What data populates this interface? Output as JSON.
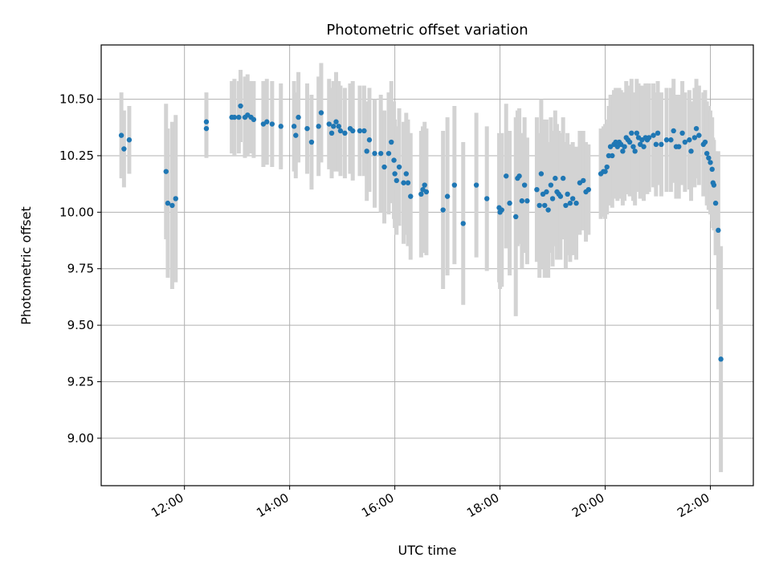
{
  "chart_data": {
    "type": "scatter",
    "title": "Photometric offset variation",
    "xlabel": "UTC time",
    "ylabel": "Photometric offset",
    "x_ticks": [
      "12:00",
      "14:00",
      "16:00",
      "18:00",
      "20:00",
      "22:00"
    ],
    "y_ticks": [
      "9.00",
      "9.25",
      "9.50",
      "9.75",
      "10.00",
      "10.25",
      "10.50"
    ],
    "xlim": [
      "10:25",
      "22:49"
    ],
    "ylim": [
      8.79,
      10.74
    ],
    "grid": true,
    "colors": {
      "point": "#1f77b4",
      "errorbar": "#d3d3d3",
      "grid": "#b0b0b0"
    },
    "points": [
      {
        "t": "10:48",
        "y": 10.34,
        "err": 0.19
      },
      {
        "t": "10:51",
        "y": 10.28,
        "err": 0.17
      },
      {
        "t": "10:57",
        "y": 10.32,
        "err": 0.15
      },
      {
        "t": "11:39",
        "y": 10.18,
        "err": 0.3
      },
      {
        "t": "11:41",
        "y": 10.04,
        "err": 0.33
      },
      {
        "t": "11:46",
        "y": 10.03,
        "err": 0.37
      },
      {
        "t": "11:50",
        "y": 10.06,
        "err": 0.37
      },
      {
        "t": "12:25",
        "y": 10.4,
        "err": 0.13
      },
      {
        "t": "12:25",
        "y": 10.37,
        "err": 0.13
      },
      {
        "t": "12:54",
        "y": 10.42,
        "err": 0.16
      },
      {
        "t": "12:57",
        "y": 10.42,
        "err": 0.17
      },
      {
        "t": "13:02",
        "y": 10.42,
        "err": 0.16
      },
      {
        "t": "13:04",
        "y": 10.47,
        "err": 0.16
      },
      {
        "t": "13:09",
        "y": 10.42,
        "err": 0.18
      },
      {
        "t": "13:12",
        "y": 10.43,
        "err": 0.18
      },
      {
        "t": "13:16",
        "y": 10.42,
        "err": 0.16
      },
      {
        "t": "13:19",
        "y": 10.41,
        "err": 0.17
      },
      {
        "t": "13:30",
        "y": 10.39,
        "err": 0.19
      },
      {
        "t": "13:34",
        "y": 10.4,
        "err": 0.19
      },
      {
        "t": "13:40",
        "y": 10.39,
        "err": 0.19
      },
      {
        "t": "13:50",
        "y": 10.38,
        "err": 0.19
      },
      {
        "t": "14:05",
        "y": 10.38,
        "err": 0.2
      },
      {
        "t": "14:07",
        "y": 10.34,
        "err": 0.19
      },
      {
        "t": "14:10",
        "y": 10.42,
        "err": 0.2
      },
      {
        "t": "14:20",
        "y": 10.37,
        "err": 0.2
      },
      {
        "t": "14:25",
        "y": 10.31,
        "err": 0.21
      },
      {
        "t": "14:33",
        "y": 10.38,
        "err": 0.22
      },
      {
        "t": "14:36",
        "y": 10.44,
        "err": 0.22
      },
      {
        "t": "14:45",
        "y": 10.39,
        "err": 0.2
      },
      {
        "t": "14:48",
        "y": 10.35,
        "err": 0.2
      },
      {
        "t": "14:50",
        "y": 10.38,
        "err": 0.2
      },
      {
        "t": "14:53",
        "y": 10.4,
        "err": 0.22
      },
      {
        "t": "14:56",
        "y": 10.38,
        "err": 0.2
      },
      {
        "t": "14:58",
        "y": 10.36,
        "err": 0.2
      },
      {
        "t": "15:03",
        "y": 10.35,
        "err": 0.2
      },
      {
        "t": "15:09",
        "y": 10.37,
        "err": 0.2
      },
      {
        "t": "15:12",
        "y": 10.36,
        "err": 0.22
      },
      {
        "t": "15:20",
        "y": 10.36,
        "err": 0.2
      },
      {
        "t": "15:25",
        "y": 10.36,
        "err": 0.2
      },
      {
        "t": "15:28",
        "y": 10.27,
        "err": 0.22
      },
      {
        "t": "15:31",
        "y": 10.32,
        "err": 0.23
      },
      {
        "t": "15:37",
        "y": 10.26,
        "err": 0.24
      },
      {
        "t": "15:44",
        "y": 10.26,
        "err": 0.26
      },
      {
        "t": "15:48",
        "y": 10.2,
        "err": 0.25
      },
      {
        "t": "15:53",
        "y": 10.26,
        "err": 0.27
      },
      {
        "t": "15:56",
        "y": 10.31,
        "err": 0.27
      },
      {
        "t": "15:59",
        "y": 10.23,
        "err": 0.26
      },
      {
        "t": "16:00",
        "y": 10.17,
        "err": 0.24
      },
      {
        "t": "16:02",
        "y": 10.14,
        "err": 0.24
      },
      {
        "t": "16:05",
        "y": 10.2,
        "err": 0.26
      },
      {
        "t": "16:10",
        "y": 10.13,
        "err": 0.27
      },
      {
        "t": "16:13",
        "y": 10.17,
        "err": 0.27
      },
      {
        "t": "16:15",
        "y": 10.13,
        "err": 0.28
      },
      {
        "t": "16:18",
        "y": 10.07,
        "err": 0.28
      },
      {
        "t": "16:30",
        "y": 10.08,
        "err": 0.28
      },
      {
        "t": "16:32",
        "y": 10.1,
        "err": 0.28
      },
      {
        "t": "16:34",
        "y": 10.12,
        "err": 0.28
      },
      {
        "t": "16:36",
        "y": 10.09,
        "err": 0.28
      },
      {
        "t": "16:55",
        "y": 10.01,
        "err": 0.35
      },
      {
        "t": "17:00",
        "y": 10.07,
        "err": 0.35
      },
      {
        "t": "17:08",
        "y": 10.12,
        "err": 0.35
      },
      {
        "t": "17:18",
        "y": 9.95,
        "err": 0.36
      },
      {
        "t": "17:33",
        "y": 10.12,
        "err": 0.32
      },
      {
        "t": "17:45",
        "y": 10.06,
        "err": 0.32
      },
      {
        "t": "17:59",
        "y": 10.02,
        "err": 0.33
      },
      {
        "t": "18:00",
        "y": 10.0,
        "err": 0.34
      },
      {
        "t": "18:02",
        "y": 10.01,
        "err": 0.34
      },
      {
        "t": "18:07",
        "y": 10.16,
        "err": 0.32
      },
      {
        "t": "18:11",
        "y": 10.04,
        "err": 0.32
      },
      {
        "t": "18:18",
        "y": 9.98,
        "err": 0.44
      },
      {
        "t": "18:20",
        "y": 10.15,
        "err": 0.3
      },
      {
        "t": "18:22",
        "y": 10.16,
        "err": 0.3
      },
      {
        "t": "18:25",
        "y": 10.05,
        "err": 0.3
      },
      {
        "t": "18:28",
        "y": 10.12,
        "err": 0.3
      },
      {
        "t": "18:31",
        "y": 10.05,
        "err": 0.28
      },
      {
        "t": "18:42",
        "y": 10.1,
        "err": 0.32
      },
      {
        "t": "18:45",
        "y": 10.03,
        "err": 0.32
      },
      {
        "t": "18:47",
        "y": 10.17,
        "err": 0.33
      },
      {
        "t": "18:49",
        "y": 10.08,
        "err": 0.33
      },
      {
        "t": "18:51",
        "y": 10.03,
        "err": 0.32
      },
      {
        "t": "18:53",
        "y": 10.09,
        "err": 0.32
      },
      {
        "t": "18:55",
        "y": 10.01,
        "err": 0.3
      },
      {
        "t": "18:58",
        "y": 10.12,
        "err": 0.3
      },
      {
        "t": "19:00",
        "y": 10.06,
        "err": 0.3
      },
      {
        "t": "19:03",
        "y": 10.15,
        "err": 0.3
      },
      {
        "t": "19:05",
        "y": 10.09,
        "err": 0.3
      },
      {
        "t": "19:07",
        "y": 10.08,
        "err": 0.28
      },
      {
        "t": "19:09",
        "y": 10.07,
        "err": 0.28
      },
      {
        "t": "19:12",
        "y": 10.15,
        "err": 0.27
      },
      {
        "t": "19:15",
        "y": 10.03,
        "err": 0.28
      },
      {
        "t": "19:17",
        "y": 10.08,
        "err": 0.27
      },
      {
        "t": "19:20",
        "y": 10.04,
        "err": 0.26
      },
      {
        "t": "19:23",
        "y": 10.06,
        "err": 0.25
      },
      {
        "t": "19:27",
        "y": 10.04,
        "err": 0.25
      },
      {
        "t": "19:31",
        "y": 10.13,
        "err": 0.23
      },
      {
        "t": "19:35",
        "y": 10.14,
        "err": 0.22
      },
      {
        "t": "19:38",
        "y": 10.09,
        "err": 0.22
      },
      {
        "t": "19:41",
        "y": 10.1,
        "err": 0.2
      },
      {
        "t": "19:55",
        "y": 10.17,
        "err": 0.2
      },
      {
        "t": "19:58",
        "y": 10.18,
        "err": 0.2
      },
      {
        "t": "20:00",
        "y": 10.18,
        "err": 0.21
      },
      {
        "t": "20:02",
        "y": 10.2,
        "err": 0.21
      },
      {
        "t": "20:04",
        "y": 10.25,
        "err": 0.22
      },
      {
        "t": "20:06",
        "y": 10.29,
        "err": 0.23
      },
      {
        "t": "20:08",
        "y": 10.25,
        "err": 0.23
      },
      {
        "t": "20:10",
        "y": 10.3,
        "err": 0.24
      },
      {
        "t": "20:12",
        "y": 10.31,
        "err": 0.24
      },
      {
        "t": "20:14",
        "y": 10.29,
        "err": 0.24
      },
      {
        "t": "20:16",
        "y": 10.31,
        "err": 0.24
      },
      {
        "t": "20:18",
        "y": 10.3,
        "err": 0.24
      },
      {
        "t": "20:20",
        "y": 10.27,
        "err": 0.24
      },
      {
        "t": "20:22",
        "y": 10.29,
        "err": 0.24
      },
      {
        "t": "20:24",
        "y": 10.33,
        "err": 0.25
      },
      {
        "t": "20:26",
        "y": 10.32,
        "err": 0.24
      },
      {
        "t": "20:28",
        "y": 10.31,
        "err": 0.24
      },
      {
        "t": "20:30",
        "y": 10.35,
        "err": 0.24
      },
      {
        "t": "20:32",
        "y": 10.29,
        "err": 0.24
      },
      {
        "t": "20:34",
        "y": 10.27,
        "err": 0.24
      },
      {
        "t": "20:36",
        "y": 10.35,
        "err": 0.24
      },
      {
        "t": "20:38",
        "y": 10.33,
        "err": 0.24
      },
      {
        "t": "20:40",
        "y": 10.3,
        "err": 0.24
      },
      {
        "t": "20:42",
        "y": 10.32,
        "err": 0.24
      },
      {
        "t": "20:44",
        "y": 10.29,
        "err": 0.24
      },
      {
        "t": "20:46",
        "y": 10.33,
        "err": 0.24
      },
      {
        "t": "20:48",
        "y": 10.32,
        "err": 0.24
      },
      {
        "t": "20:50",
        "y": 10.33,
        "err": 0.24
      },
      {
        "t": "20:55",
        "y": 10.34,
        "err": 0.23
      },
      {
        "t": "20:58",
        "y": 10.3,
        "err": 0.23
      },
      {
        "t": "21:00",
        "y": 10.35,
        "err": 0.23
      },
      {
        "t": "21:04",
        "y": 10.3,
        "err": 0.23
      },
      {
        "t": "21:10",
        "y": 10.32,
        "err": 0.23
      },
      {
        "t": "21:15",
        "y": 10.32,
        "err": 0.23
      },
      {
        "t": "21:18",
        "y": 10.36,
        "err": 0.23
      },
      {
        "t": "21:21",
        "y": 10.29,
        "err": 0.23
      },
      {
        "t": "21:24",
        "y": 10.29,
        "err": 0.23
      },
      {
        "t": "21:28",
        "y": 10.35,
        "err": 0.23
      },
      {
        "t": "21:31",
        "y": 10.31,
        "err": 0.22
      },
      {
        "t": "21:36",
        "y": 10.32,
        "err": 0.22
      },
      {
        "t": "21:38",
        "y": 10.27,
        "err": 0.22
      },
      {
        "t": "21:42",
        "y": 10.33,
        "err": 0.22
      },
      {
        "t": "21:44",
        "y": 10.37,
        "err": 0.22
      },
      {
        "t": "21:47",
        "y": 10.34,
        "err": 0.22
      },
      {
        "t": "21:52",
        "y": 10.3,
        "err": 0.23
      },
      {
        "t": "21:54",
        "y": 10.31,
        "err": 0.23
      },
      {
        "t": "21:56",
        "y": 10.26,
        "err": 0.23
      },
      {
        "t": "21:58",
        "y": 10.24,
        "err": 0.23
      },
      {
        "t": "22:00",
        "y": 10.22,
        "err": 0.23
      },
      {
        "t": "22:02",
        "y": 10.19,
        "err": 0.23
      },
      {
        "t": "22:03",
        "y": 10.13,
        "err": 0.2
      },
      {
        "t": "22:04",
        "y": 10.12,
        "err": 0.2
      },
      {
        "t": "22:06",
        "y": 10.04,
        "err": 0.23
      },
      {
        "t": "22:09",
        "y": 9.92,
        "err": 0.35
      },
      {
        "t": "22:12",
        "y": 9.35,
        "err": 0.5
      }
    ]
  }
}
